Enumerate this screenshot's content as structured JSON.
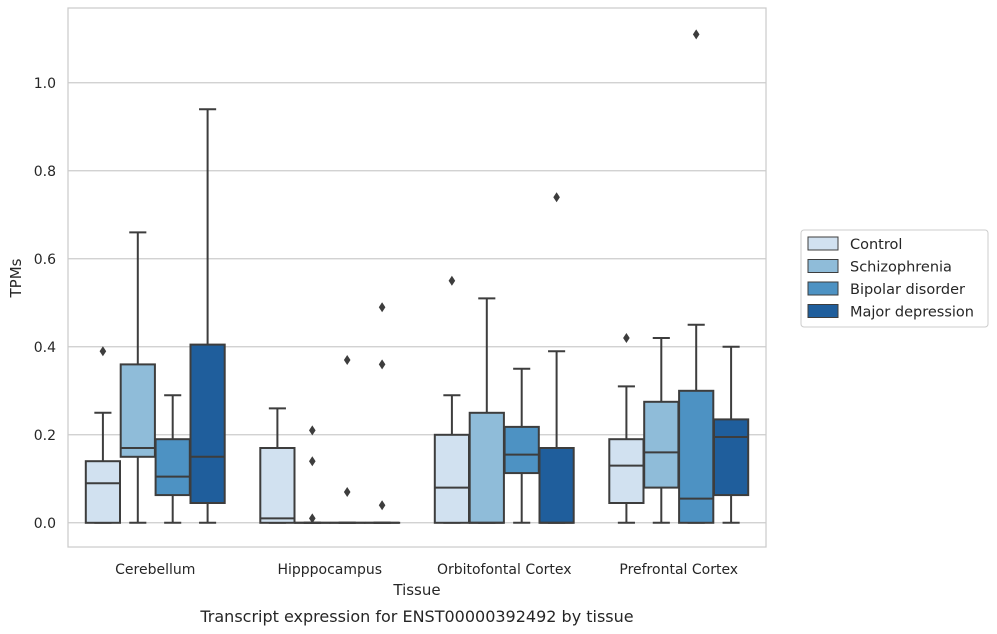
{
  "caption": "Transcript expression for ENST00000392492 by tissue",
  "chart_data": {
    "type": "box",
    "xlabel": "Tissue",
    "ylabel": "TPMs",
    "ylim": [
      -0.055,
      1.17
    ],
    "yticks": [
      0.0,
      0.2,
      0.4,
      0.6,
      0.8,
      1.0
    ],
    "grid": true,
    "legend_position": "right",
    "categories": [
      "Cerebellum",
      "Hipppocampus",
      "Orbitofontal Cortex",
      "Prefrontal Cortex"
    ],
    "series": [
      {
        "name": "Control",
        "color": "#d1e1f0",
        "boxes": [
          {
            "whislo": 0.0,
            "q1": 0.0,
            "med": 0.09,
            "q3": 0.14,
            "whishi": 0.25,
            "fliers": [
              0.39
            ]
          },
          {
            "whislo": 0.0,
            "q1": 0.0,
            "med": 0.01,
            "q3": 0.17,
            "whishi": 0.26,
            "fliers": []
          },
          {
            "whislo": 0.0,
            "q1": 0.0,
            "med": 0.08,
            "q3": 0.2,
            "whishi": 0.29,
            "fliers": [
              0.55
            ]
          },
          {
            "whislo": 0.0,
            "q1": 0.045,
            "med": 0.13,
            "q3": 0.19,
            "whishi": 0.31,
            "fliers": [
              0.42
            ]
          }
        ]
      },
      {
        "name": "Schizophrenia",
        "color": "#8fbcd9",
        "boxes": [
          {
            "whislo": 0.0,
            "q1": 0.15,
            "med": 0.17,
            "q3": 0.36,
            "whishi": 0.66,
            "fliers": []
          },
          {
            "whislo": 0.0,
            "q1": 0.0,
            "med": 0.0,
            "q3": 0.0,
            "whishi": 0.0,
            "fliers": [
              0.01,
              0.14,
              0.21
            ]
          },
          {
            "whislo": 0.0,
            "q1": 0.0,
            "med": 0.0,
            "q3": 0.25,
            "whishi": 0.51,
            "fliers": []
          },
          {
            "whislo": 0.0,
            "q1": 0.08,
            "med": 0.16,
            "q3": 0.275,
            "whishi": 0.42,
            "fliers": []
          }
        ]
      },
      {
        "name": "Bipolar disorder",
        "color": "#4d92c3",
        "boxes": [
          {
            "whislo": 0.0,
            "q1": 0.063,
            "med": 0.105,
            "q3": 0.19,
            "whishi": 0.29,
            "fliers": []
          },
          {
            "whislo": 0.0,
            "q1": 0.0,
            "med": 0.0,
            "q3": 0.0,
            "whishi": 0.0,
            "fliers": [
              0.07,
              0.37
            ]
          },
          {
            "whislo": 0.0,
            "q1": 0.113,
            "med": 0.155,
            "q3": 0.218,
            "whishi": 0.35,
            "fliers": []
          },
          {
            "whislo": 0.0,
            "q1": 0.0,
            "med": 0.055,
            "q3": 0.3,
            "whishi": 0.45,
            "fliers": [
              1.11
            ]
          }
        ]
      },
      {
        "name": "Major depression",
        "color": "#1f5e9c",
        "boxes": [
          {
            "whislo": 0.0,
            "q1": 0.045,
            "med": 0.15,
            "q3": 0.405,
            "whishi": 0.94,
            "fliers": []
          },
          {
            "whislo": 0.0,
            "q1": 0.0,
            "med": 0.0,
            "q3": 0.0,
            "whishi": 0.0,
            "fliers": [
              0.04,
              0.36,
              0.49
            ]
          },
          {
            "whislo": 0.0,
            "q1": 0.0,
            "med": 0.0,
            "q3": 0.17,
            "whishi": 0.39,
            "fliers": [
              0.74
            ]
          },
          {
            "whislo": 0.0,
            "q1": 0.063,
            "med": 0.195,
            "q3": 0.235,
            "whishi": 0.4,
            "fliers": []
          }
        ]
      }
    ]
  }
}
